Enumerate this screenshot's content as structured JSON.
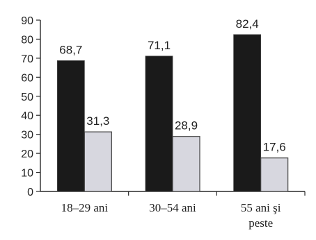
{
  "chart_data": {
    "type": "bar",
    "categories": [
      "18–29 ani",
      "30–54 ani",
      "55 ani şi peste"
    ],
    "category_lines": [
      [
        "18–29 ani"
      ],
      [
        "30–54 ani"
      ],
      [
        "55 ani şi",
        "peste"
      ]
    ],
    "series": [
      {
        "values": [
          68.7,
          71.1,
          82.4
        ],
        "value_labels": [
          "68,7",
          "71,1",
          "82,4"
        ],
        "color": "#1a1a1a"
      },
      {
        "values": [
          31.3,
          28.9,
          17.6
        ],
        "value_labels": [
          "31,3",
          "28,9",
          "17,6"
        ],
        "color": "#d7d7df"
      }
    ],
    "y_ticks": [
      "0",
      "10",
      "20",
      "30",
      "40",
      "50",
      "60",
      "70",
      "80",
      "90"
    ],
    "ylim": [
      0,
      90
    ],
    "grid": false,
    "legend": "none",
    "axis_color": "#2a2a2a"
  }
}
